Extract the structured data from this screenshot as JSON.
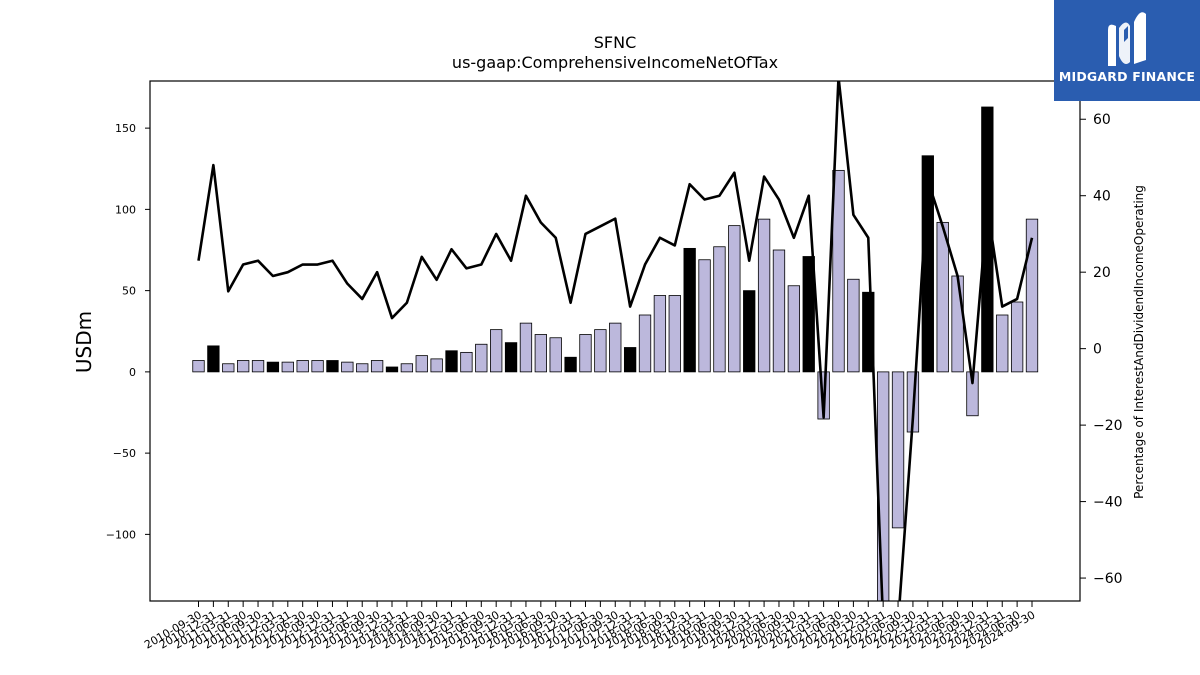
{
  "logo": {
    "text": "MIDGARD FINANCE",
    "icon": "midgard-m-logo-icon",
    "color": "#2a5db0"
  },
  "chart_data": {
    "type": "bar",
    "title": "SFNC",
    "subtitle": "us-gaap:ComprehensiveIncomeNetOfTax",
    "ylabel": "USDm",
    "y2label": "Percentage of InterestAndDividendIncomeOperating",
    "ylim": [
      -141,
      179
    ],
    "y2lim": [
      -66,
      70
    ],
    "yticks": [
      -100,
      -50,
      0,
      50,
      100,
      150
    ],
    "y2ticks": [
      -60,
      -40,
      -20,
      0,
      20,
      40,
      60
    ],
    "grid": false,
    "colors": {
      "highlight": "#000000",
      "normal": "#bcb8dc",
      "line": "#000000"
    },
    "categories": [
      "2010-09-30",
      "2010-12-31",
      "2011-03-31",
      "2011-06-30",
      "2011-09-30",
      "2011-12-31",
      "2012-03-31",
      "2012-06-30",
      "2012-09-30",
      "2012-12-31",
      "2013-03-31",
      "2013-06-30",
      "2013-09-30",
      "2013-12-31",
      "2014-03-31",
      "2014-06-30",
      "2014-09-30",
      "2014-12-31",
      "2015-03-31",
      "2015-06-30",
      "2015-09-30",
      "2015-12-31",
      "2016-03-31",
      "2016-06-30",
      "2016-09-30",
      "2016-12-31",
      "2017-03-31",
      "2017-06-30",
      "2017-09-30",
      "2017-12-31",
      "2018-03-31",
      "2018-06-30",
      "2018-09-30",
      "2018-12-31",
      "2019-03-31",
      "2019-06-30",
      "2019-09-30",
      "2019-12-31",
      "2020-03-31",
      "2020-06-30",
      "2020-09-30",
      "2020-12-31",
      "2021-03-31",
      "2021-06-30",
      "2021-09-30",
      "2021-12-31",
      "2022-03-31",
      "2022-06-30",
      "2022-09-30",
      "2022-12-31",
      "2023-03-31",
      "2023-06-30",
      "2023-09-30",
      "2023-12-31",
      "2024-03-31",
      "2024-06-30",
      "2024-09-30"
    ],
    "xtick_labels": [
      "2010-09-30",
      "2010-12-31",
      "2011-03-31",
      "2011-06-30",
      "2011-09-30",
      "2011-12-31",
      "2012-03-31",
      "2012-06-30",
      "2012-09-30",
      "2012-12-31",
      "2013-03-31",
      "2013-06-30",
      "2013-09-30",
      "2013-12-31",
      "2014-03-31",
      "2014-06-30",
      "2014-09-30",
      "2014-12-31",
      "2015-03-31",
      "2015-06-30",
      "2015-09-30",
      "2015-12-31",
      "2016-03-31",
      "2016-06-30",
      "2016-09-30",
      "2016-12-31",
      "2017-03-31",
      "2017-06-30",
      "2017-09-30",
      "2017-12-31",
      "2018-03-31",
      "2018-06-30",
      "2018-09-30",
      "2018-12-31",
      "2019-03-31",
      "2019-06-30",
      "2019-09-30",
      "2019-12-31",
      "2020-03-31",
      "2020-06-30",
      "2020-09-30",
      "2020-12-31",
      "2021-03-31",
      "2021-06-30",
      "2021-09-30",
      "2021-12-31",
      "2022-03-31",
      "2022-06-30",
      "2022-09-30",
      "2022-12-31",
      "2023-03-31",
      "2023-06-30",
      "2023-09-30",
      "2023-12-31",
      "2024-03-31",
      "2024-06-30",
      "2024-09-30"
    ],
    "series": [
      {
        "kind": "bar",
        "axis": "left",
        "values": [
          7,
          16,
          5,
          7,
          7,
          6,
          6,
          7,
          7,
          7,
          6,
          5,
          7,
          3,
          5,
          10,
          8,
          13,
          12,
          17,
          26,
          18,
          30,
          23,
          21,
          9,
          23,
          26,
          30,
          15,
          35,
          47,
          47,
          76,
          69,
          77,
          90,
          50,
          94,
          75,
          53,
          71,
          -29,
          124,
          57,
          49,
          -145,
          -96,
          -37,
          133,
          92,
          59,
          -27,
          163,
          35,
          43,
          94
        ],
        "highlight": [
          false,
          true,
          false,
          false,
          false,
          true,
          false,
          false,
          false,
          true,
          false,
          false,
          false,
          true,
          false,
          false,
          false,
          true,
          false,
          false,
          false,
          true,
          false,
          false,
          false,
          true,
          false,
          false,
          false,
          true,
          false,
          false,
          false,
          true,
          false,
          false,
          false,
          true,
          false,
          false,
          false,
          true,
          false,
          false,
          false,
          true,
          false,
          false,
          false,
          true,
          false,
          false,
          false,
          true,
          false,
          false,
          false
        ]
      },
      {
        "kind": "line",
        "axis": "right",
        "values": [
          23,
          48,
          15,
          22,
          23,
          19,
          20,
          22,
          22,
          23,
          17,
          13,
          20,
          8,
          12,
          24,
          18,
          26,
          21,
          22,
          30,
          23,
          40,
          33,
          29,
          12,
          30,
          32,
          34,
          11,
          22,
          29,
          27,
          43,
          39,
          40,
          46,
          23,
          45,
          39,
          29,
          40,
          -18,
          71,
          35,
          29,
          -72,
          -72,
          -18,
          44,
          32,
          19,
          -9,
          37,
          11,
          13,
          29
        ]
      }
    ]
  }
}
